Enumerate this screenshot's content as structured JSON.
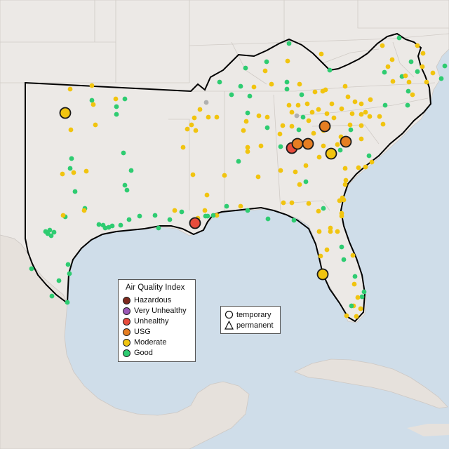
{
  "legend": {
    "title": "Air Quality Index",
    "categories": [
      {
        "label": "Hazardous",
        "color": "#7e2a1e"
      },
      {
        "label": "Very Unhealthy",
        "color": "#9b59b6"
      },
      {
        "label": "Unhealthy",
        "color": "#e74c3c"
      },
      {
        "label": "USG",
        "color": "#e67e22"
      },
      {
        "label": "Moderate",
        "color": "#f1c40f"
      },
      {
        "label": "Good",
        "color": "#2ecc71"
      }
    ]
  },
  "site_types": {
    "temporary": "temporary",
    "permanent": "permanent"
  },
  "colors": {
    "land": "#ece9e6",
    "water": "#cfdde9",
    "region_outline": "#000000",
    "inactive_station": "#b0b0b0"
  }
}
